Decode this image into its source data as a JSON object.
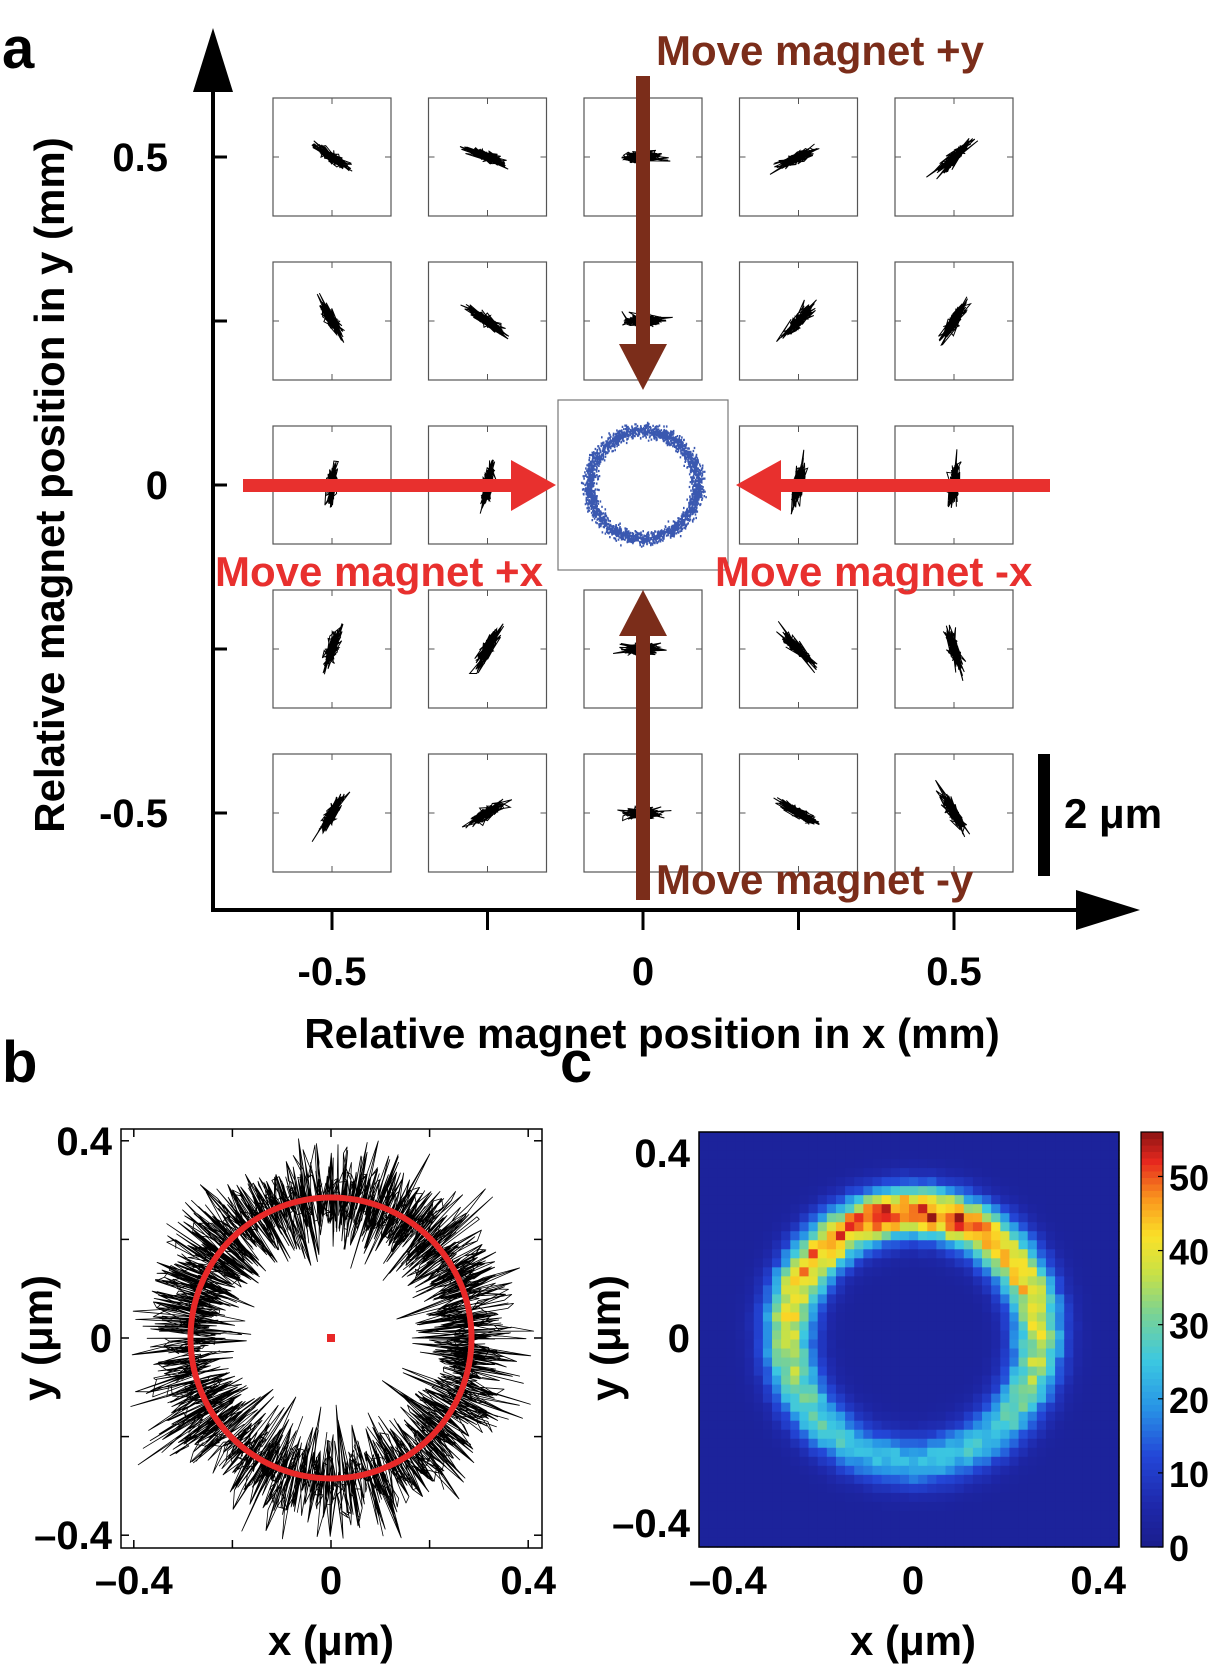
{
  "panels": {
    "a": "a",
    "b": "b",
    "c": "c"
  },
  "colors": {
    "red_arrow": "#e8302e",
    "brown_arrow": "#7b2d1a",
    "blue_ring": "#3a58b0",
    "fit_circle": "#e82828"
  },
  "chart_data": [
    {
      "type": "scatter",
      "panel": "a",
      "xlabel": "Relative magnet position in x (mm)",
      "ylabel": "Relative magnet position in y (mm)",
      "x_ticks": [
        -0.5,
        0,
        0.5
      ],
      "y_ticks": [
        0.5,
        0,
        -0.5
      ],
      "x_tick_labels": [
        "-0.5",
        "0",
        "0.5"
      ],
      "y_tick_labels": [
        "0.5",
        "0",
        "-0.5"
      ],
      "grid_positions_mm": [
        -0.5,
        -0.25,
        0,
        0.25,
        0.5
      ],
      "trajectory_orientation_deg": [
        [
          60,
          30,
          0,
          -30,
          -60
        ],
        [
          70,
          60,
          0,
          -45,
          -70
        ],
        [
          85,
          80,
          null,
          80,
          85
        ],
        [
          -60,
          -35,
          0,
          45,
          60
        ],
        [
          -35,
          -20,
          0,
          25,
          45
        ]
      ],
      "annotations": {
        "plus_y": "Move magnet +y",
        "minus_y": "Move magnet -y",
        "plus_x": "Move magnet +x",
        "minus_x": "Move magnet -x"
      },
      "scale_bar": "2 μm"
    },
    {
      "type": "line",
      "panel": "b",
      "xlabel": "x (μm)",
      "ylabel": "y (μm)",
      "xlim": [
        -0.43,
        0.43
      ],
      "ylim": [
        -0.43,
        0.43
      ],
      "x_ticks": [
        -0.4,
        0,
        0.4
      ],
      "y_ticks": [
        0.4,
        0,
        -0.4
      ],
      "x_tick_labels": [
        "–0.4",
        "0",
        "0.4"
      ],
      "y_tick_labels": [
        "0.4",
        "0",
        "–0.4"
      ],
      "ring_radius_um": 0.29,
      "ring_spread_um": 0.05,
      "fit_circle_radius_um": 0.285,
      "center": [
        0,
        0
      ]
    },
    {
      "type": "heatmap",
      "panel": "c",
      "xlabel": "x (μm)",
      "ylabel": "y (μm)",
      "xlim": [
        -0.45,
        0.45
      ],
      "ylim": [
        -0.45,
        0.45
      ],
      "x_ticks": [
        -0.4,
        0,
        0.4
      ],
      "y_ticks": [
        0.4,
        0,
        -0.4
      ],
      "x_tick_labels": [
        "–0.4",
        "0",
        "0.4"
      ],
      "y_tick_labels": [
        "0.4",
        "0",
        "–0.4"
      ],
      "colorbar_range": [
        0,
        56
      ],
      "colorbar_ticks": [
        0,
        10,
        20,
        30,
        40,
        50
      ],
      "colorbar_tick_labels": [
        "0",
        "10",
        "20",
        "30",
        "40",
        "50"
      ],
      "ring_radius_um": 0.27,
      "ring_width_um": 0.055,
      "peak_count": 56
    }
  ]
}
